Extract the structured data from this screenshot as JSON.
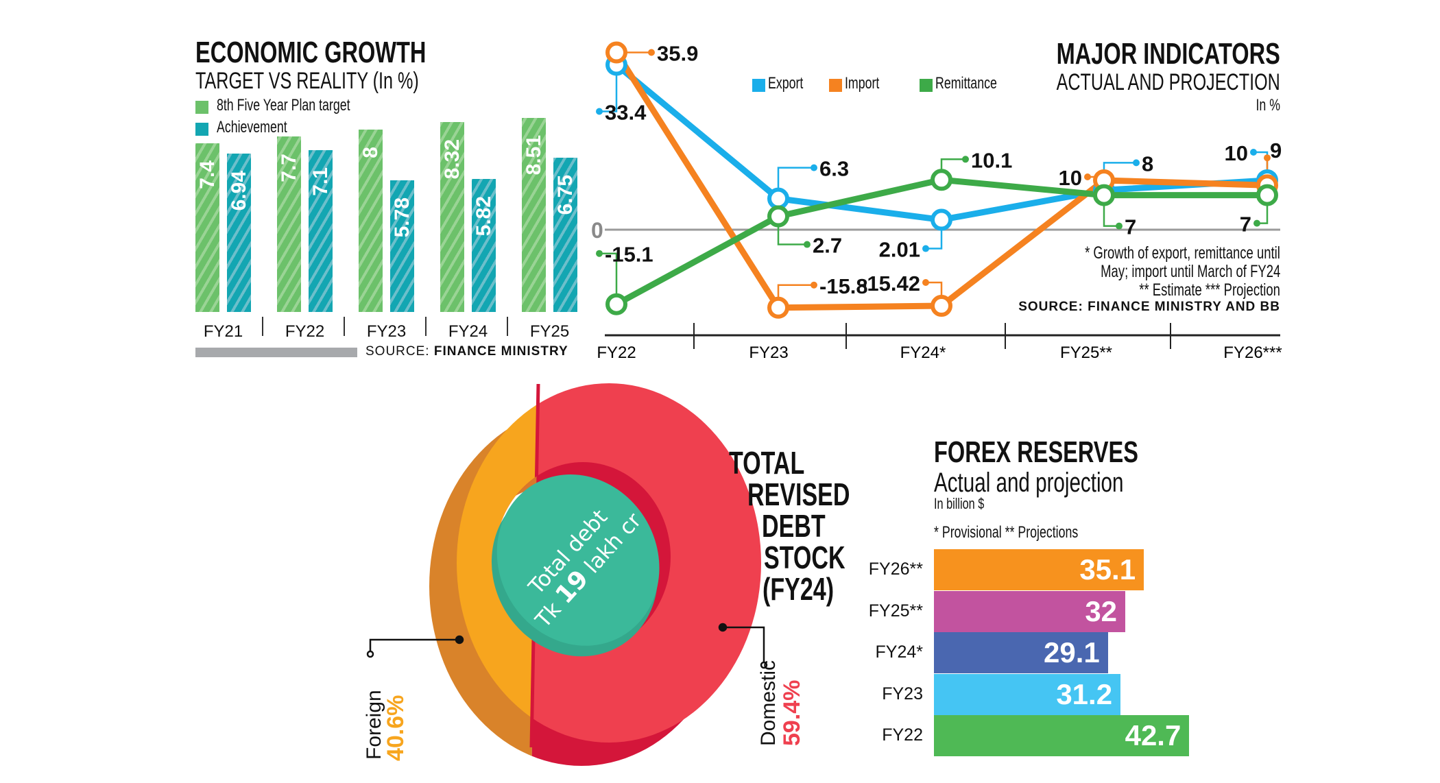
{
  "economic_growth": {
    "title": "ECONOMIC GROWTH",
    "subtitle": "TARGET VS REALITY (In %)",
    "source_label": "SOURCE:",
    "source": "FINANCE MINISTRY"
  },
  "major_indicators": {
    "title": "MAJOR INDICATORS",
    "subtitle": "ACTUAL AND PROJECTION",
    "unit": "In %",
    "zero_label": "0",
    "notes": [
      "* Growth of export, remittance until",
      "May; import until March of FY24",
      "** Estimate *** Projection"
    ],
    "source": "SOURCE: FINANCE MINISTRY AND BB"
  },
  "debt": {
    "title_lines": [
      "TOTAL",
      "REVISED",
      "DEBT",
      "STOCK",
      "(FY24)"
    ],
    "center_line1": "Total debt",
    "center_tk": "Tk",
    "center_amount": "19",
    "center_unit": "lakh cr"
  },
  "forex": {
    "title": "FOREX RESERVES",
    "subtitle": "Actual and projection",
    "unit": "In billion $",
    "note": "* Provisional ** Projections"
  },
  "colors": {
    "target": "#6cc16a",
    "achievement": "#13a6b2",
    "export": "#1aaeea",
    "import": "#f58220",
    "remittance": "#3daa48",
    "foreign": "#f7a51e",
    "domestic": "#ef404f",
    "center": "#3bb99a"
  },
  "chart_data": [
    {
      "type": "bar",
      "title": "ECONOMIC GROWTH",
      "subtitle": "TARGET VS REALITY (In %)",
      "categories": [
        "FY21",
        "FY22",
        "FY23",
        "FY24",
        "FY25"
      ],
      "series": [
        {
          "name": "8th Five Year Plan target",
          "values": [
            "7.4",
            "7.7",
            "8",
            "8.32",
            "8.51"
          ]
        },
        {
          "name": "Achievement",
          "values": [
            "6.94",
            "7.1",
            "5.78",
            "5.82",
            "6.75"
          ]
        }
      ],
      "ylim": [
        0,
        9
      ],
      "legend": "top-left",
      "grid": false
    },
    {
      "type": "line",
      "title": "MAJOR INDICATORS",
      "subtitle": "ACTUAL AND PROJECTION",
      "ylabel": "In %",
      "categories": [
        "FY22",
        "FY23",
        "FY24*",
        "FY25**",
        "FY26***"
      ],
      "series": [
        {
          "name": "Export",
          "values": [
            "33.4",
            "6.3",
            "2.01",
            "8",
            "10"
          ]
        },
        {
          "name": "Import",
          "values": [
            "35.9",
            "-15.8",
            "-15.42",
            "10",
            "9"
          ]
        },
        {
          "name": "Remittance",
          "values": [
            "-15.1",
            "2.7",
            "10.1",
            "7",
            "7"
          ]
        }
      ],
      "ylim": [
        -18,
        38
      ],
      "legend": "top",
      "grid": false
    },
    {
      "type": "pie",
      "title": "TOTAL REVISED DEBT STOCK (FY24)",
      "slices": [
        {
          "name": "Foreign",
          "value": 40.6,
          "label": "40.6%"
        },
        {
          "name": "Domestic",
          "value": 59.4,
          "label": "59.4%"
        }
      ]
    },
    {
      "type": "bar",
      "orientation": "horizontal",
      "title": "FOREX RESERVES",
      "subtitle": "Actual and projection",
      "xlabel": "In billion $",
      "categories": [
        "FY26**",
        "FY25**",
        "FY24*",
        "FY23",
        "FY22"
      ],
      "values": [
        "35.1",
        "32",
        "29.1",
        "31.2",
        "42.7"
      ],
      "colors": [
        "#f7921e",
        "#c2539f",
        "#4a67b0",
        "#45c5f3",
        "#4fb955"
      ],
      "xlim": [
        0,
        45
      ]
    }
  ]
}
